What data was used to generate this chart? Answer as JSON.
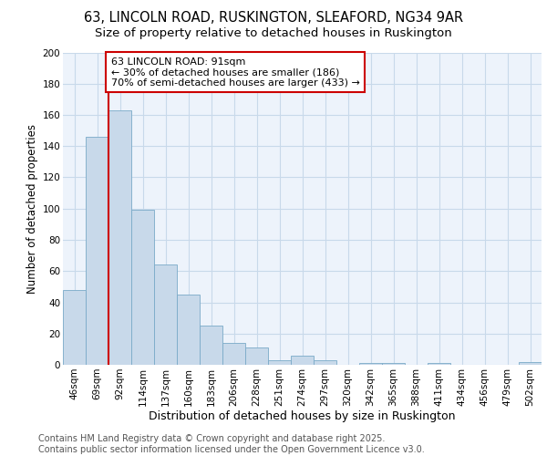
{
  "title1": "63, LINCOLN ROAD, RUSKINGTON, SLEAFORD, NG34 9AR",
  "title2": "Size of property relative to detached houses in Ruskington",
  "xlabel": "Distribution of detached houses by size in Ruskington",
  "ylabel": "Number of detached properties",
  "categories": [
    "46sqm",
    "69sqm",
    "92sqm",
    "114sqm",
    "137sqm",
    "160sqm",
    "183sqm",
    "206sqm",
    "228sqm",
    "251sqm",
    "274sqm",
    "297sqm",
    "320sqm",
    "342sqm",
    "365sqm",
    "388sqm",
    "411sqm",
    "434sqm",
    "456sqm",
    "479sqm",
    "502sqm"
  ],
  "values": [
    48,
    146,
    163,
    99,
    64,
    45,
    25,
    14,
    11,
    3,
    6,
    3,
    0,
    1,
    1,
    0,
    1,
    0,
    0,
    0,
    2
  ],
  "bar_color": "#c8d9ea",
  "bar_edge_color": "#7aaac8",
  "red_line_x": 1.5,
  "annotation_text": "63 LINCOLN ROAD: 91sqm\n← 30% of detached houses are smaller (186)\n70% of semi-detached houses are larger (433) →",
  "annotation_box_facecolor": "#ffffff",
  "annotation_box_edge": "#cc0000",
  "ylim": [
    0,
    200
  ],
  "yticks": [
    0,
    20,
    40,
    60,
    80,
    100,
    120,
    140,
    160,
    180,
    200
  ],
  "background_color": "#ffffff",
  "plot_bg_color": "#edf3fb",
  "grid_color": "#c8d9ea",
  "footer": "Contains HM Land Registry data © Crown copyright and database right 2025.\nContains public sector information licensed under the Open Government Licence v3.0.",
  "title1_fontsize": 10.5,
  "title2_fontsize": 9.5,
  "xlabel_fontsize": 9,
  "ylabel_fontsize": 8.5,
  "tick_fontsize": 7.5,
  "annotation_fontsize": 8,
  "footer_fontsize": 7
}
